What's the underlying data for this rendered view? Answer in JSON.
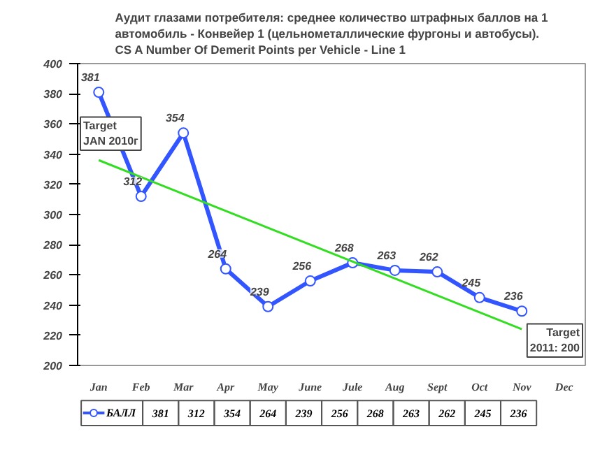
{
  "chart_data": {
    "type": "line",
    "title": "Аудит глазами потребителя: среднее количество штрафных баллов на 1\nавтомобиль - Конвейер 1 (цельнометаллические фургоны и автобусы).\nCS A Number Of Demerit Points per Vehicle - Line 1",
    "categories": [
      "Jan",
      "Feb",
      "Mar",
      "Apr",
      "May",
      "June",
      "Jule",
      "Aug",
      "Sept",
      "Oct",
      "Nov",
      "Dec"
    ],
    "series": [
      {
        "name": "БАЛЛ",
        "color": "#3355ff",
        "marker": "circle",
        "values": [
          381,
          312,
          354,
          264,
          239,
          256,
          268,
          263,
          262,
          245,
          236,
          null
        ],
        "value_labels": [
          "381",
          "312",
          "354",
          "264",
          "239",
          "256",
          "268",
          "263",
          "262",
          "245",
          "236",
          null
        ]
      },
      {
        "type": "line",
        "color": "#33dd22",
        "marker": "none",
        "x": [
          "Jan",
          "Nov"
        ],
        "values": [
          336,
          224
        ]
      }
    ],
    "ylim": [
      200,
      400
    ],
    "yticks": [
      200,
      220,
      240,
      260,
      280,
      300,
      320,
      340,
      360,
      380,
      400
    ],
    "annotations": [
      "Target\nJAN 2010г",
      "Target\n2011: 200"
    ],
    "grid": false,
    "legend": "bottom",
    "line_style": "solid"
  }
}
